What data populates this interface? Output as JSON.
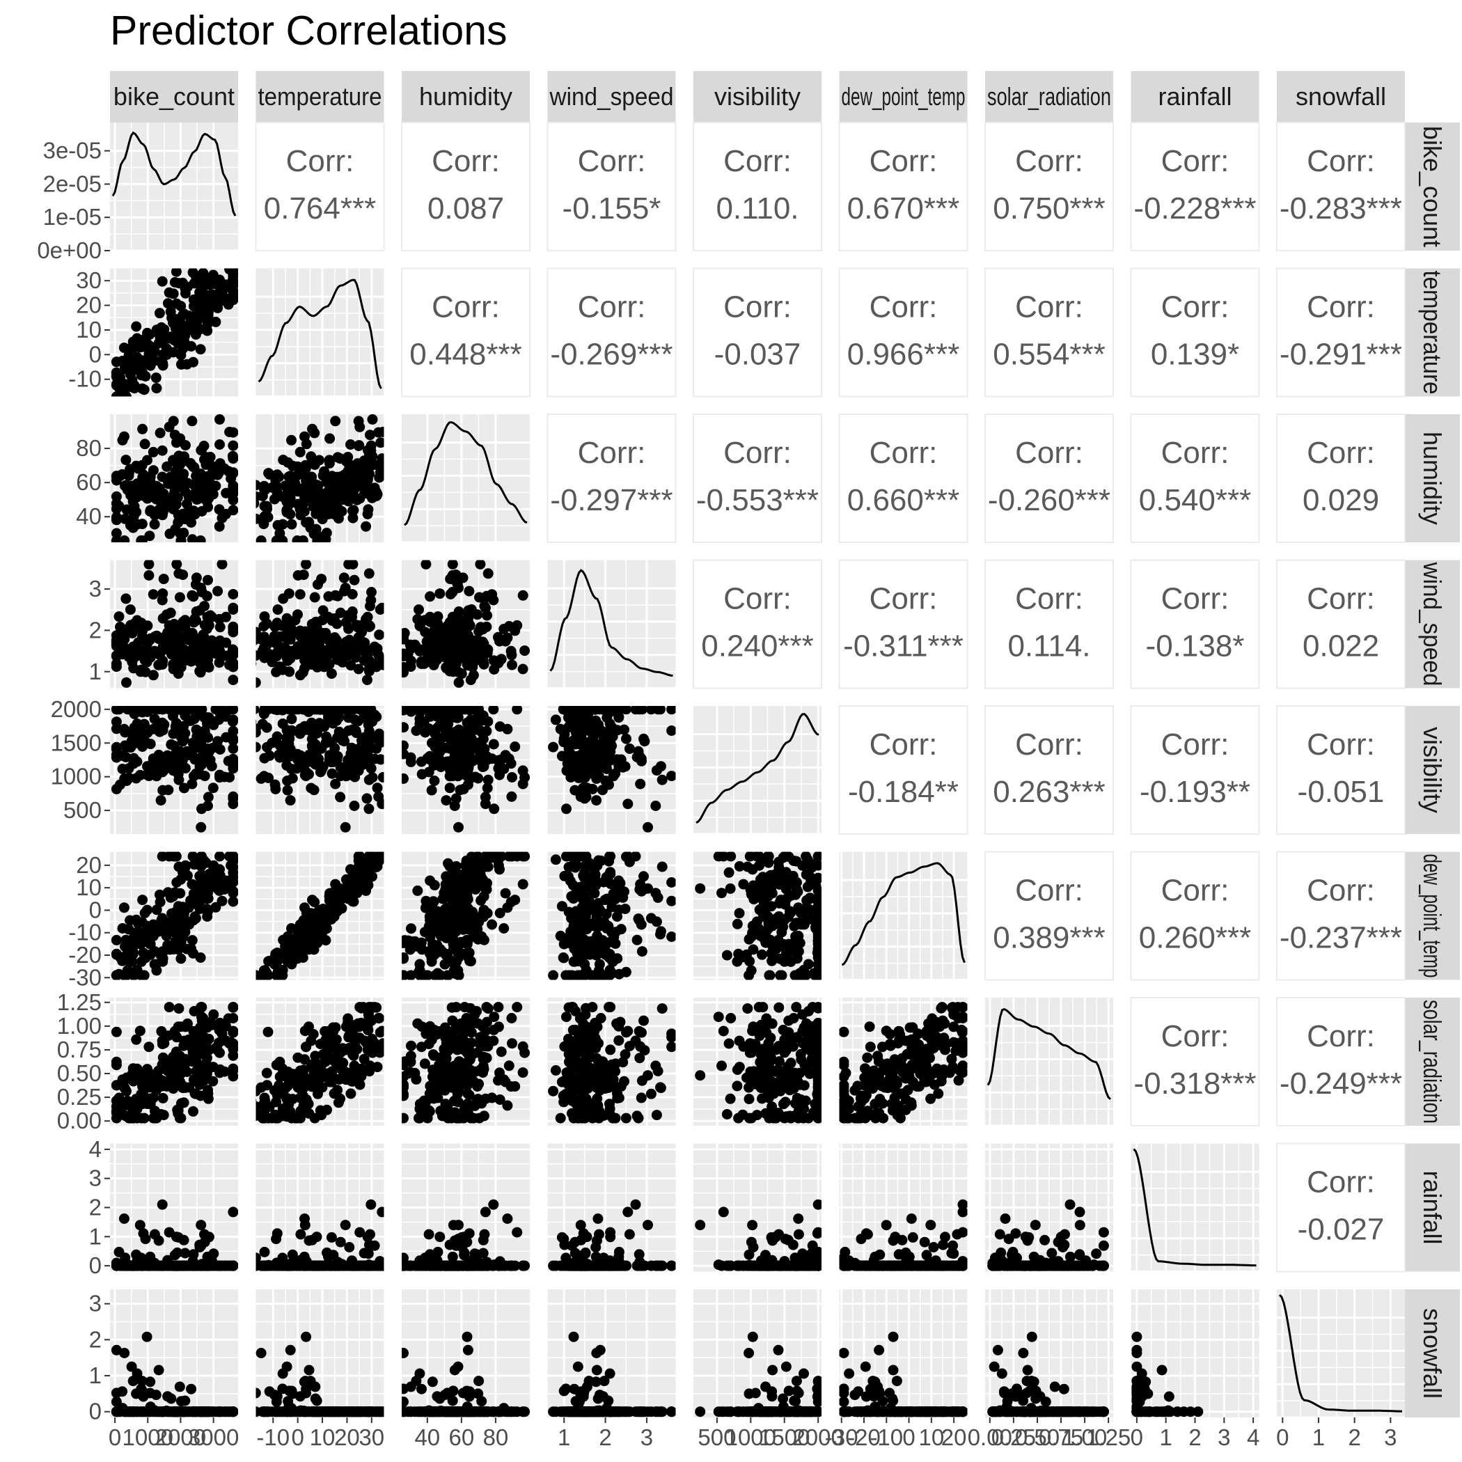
{
  "chart_data": {
    "type": "scatter",
    "title": "Predictor Correlations",
    "variables": [
      "bike_count",
      "temperature",
      "humidity",
      "wind_speed",
      "visibility",
      "dew_point_temp",
      "solar_radiation",
      "rainfall",
      "snowfall"
    ],
    "strip_labels": [
      "bike_count",
      "temperature",
      "humidity",
      "wind_speed",
      "visibility",
      "dew_point_temp",
      "solar_radiation",
      "rainfall",
      "snowfall"
    ],
    "corr_label": "Corr:",
    "correlations": [
      {
        "row": 0,
        "col": 1,
        "value": "0.764***"
      },
      {
        "row": 0,
        "col": 2,
        "value": "0.087"
      },
      {
        "row": 0,
        "col": 3,
        "value": "-0.155*"
      },
      {
        "row": 0,
        "col": 4,
        "value": "0.110."
      },
      {
        "row": 0,
        "col": 5,
        "value": "0.670***"
      },
      {
        "row": 0,
        "col": 6,
        "value": "0.750***"
      },
      {
        "row": 0,
        "col": 7,
        "value": "-0.228***"
      },
      {
        "row": 0,
        "col": 8,
        "value": "-0.283***"
      },
      {
        "row": 1,
        "col": 2,
        "value": "0.448***"
      },
      {
        "row": 1,
        "col": 3,
        "value": "-0.269***"
      },
      {
        "row": 1,
        "col": 4,
        "value": "-0.037"
      },
      {
        "row": 1,
        "col": 5,
        "value": "0.966***"
      },
      {
        "row": 1,
        "col": 6,
        "value": "0.554***"
      },
      {
        "row": 1,
        "col": 7,
        "value": "0.139*"
      },
      {
        "row": 1,
        "col": 8,
        "value": "-0.291***"
      },
      {
        "row": 2,
        "col": 3,
        "value": "-0.297***"
      },
      {
        "row": 2,
        "col": 4,
        "value": "-0.553***"
      },
      {
        "row": 2,
        "col": 5,
        "value": "0.660***"
      },
      {
        "row": 2,
        "col": 6,
        "value": "-0.260***"
      },
      {
        "row": 2,
        "col": 7,
        "value": "0.540***"
      },
      {
        "row": 2,
        "col": 8,
        "value": "0.029"
      },
      {
        "row": 3,
        "col": 4,
        "value": "0.240***"
      },
      {
        "row": 3,
        "col": 5,
        "value": "-0.311***"
      },
      {
        "row": 3,
        "col": 6,
        "value": "0.114."
      },
      {
        "row": 3,
        "col": 7,
        "value": "-0.138*"
      },
      {
        "row": 3,
        "col": 8,
        "value": "0.022"
      },
      {
        "row": 4,
        "col": 5,
        "value": "-0.184**"
      },
      {
        "row": 4,
        "col": 6,
        "value": "0.263***"
      },
      {
        "row": 4,
        "col": 7,
        "value": "-0.193**"
      },
      {
        "row": 4,
        "col": 8,
        "value": "-0.051"
      },
      {
        "row": 5,
        "col": 6,
        "value": "0.389***"
      },
      {
        "row": 5,
        "col": 7,
        "value": "0.260***"
      },
      {
        "row": 5,
        "col": 8,
        "value": "-0.237***"
      },
      {
        "row": 6,
        "col": 7,
        "value": "-0.318***"
      },
      {
        "row": 6,
        "col": 8,
        "value": "-0.249***"
      },
      {
        "row": 7,
        "col": 8,
        "value": "-0.027"
      }
    ],
    "density_y_axis": {
      "range": [
        0,
        3.85e-05
      ],
      "ticks": [
        0,
        1e-05,
        2e-05,
        3e-05
      ],
      "tick_labels": [
        "0e+00",
        "1e-05",
        "2e-05",
        "3e-05"
      ]
    },
    "axes": {
      "bike_count": {
        "range": [
          -150,
          3750
        ],
        "ticks": [
          0,
          1000,
          2000,
          3000
        ],
        "tick_labels": [
          "0",
          "1000",
          "2000",
          "3000"
        ]
      },
      "temperature": {
        "range": [
          -17,
          35
        ],
        "ticks": [
          -10,
          0,
          10,
          20,
          30
        ],
        "tick_labels": [
          "-10",
          "0",
          "10",
          "20",
          "30"
        ]
      },
      "humidity": {
        "range": [
          25,
          100
        ],
        "ticks": [
          40,
          60,
          80
        ],
        "tick_labels": [
          "40",
          "60",
          "80"
        ]
      },
      "wind_speed": {
        "range": [
          0.6,
          3.7
        ],
        "ticks": [
          1,
          2,
          3
        ],
        "tick_labels": [
          "1",
          "2",
          "3"
        ]
      },
      "visibility": {
        "range": [
          150,
          2050
        ],
        "ticks": [
          500,
          1000,
          1500,
          2000
        ],
        "tick_labels": [
          "500",
          "1000",
          "1500",
          "2000"
        ]
      },
      "dew_point_temp": {
        "range": [
          -31,
          26
        ],
        "ticks": [
          -30,
          -20,
          -10,
          0,
          10,
          20
        ],
        "tick_labels": [
          "-30",
          "-20",
          "-10",
          "0",
          "10",
          "20"
        ]
      },
      "solar_radiation": {
        "range": [
          -0.05,
          1.3
        ],
        "ticks": [
          0,
          0.25,
          0.5,
          0.75,
          1.0,
          1.25
        ],
        "tick_labels": [
          "0.00",
          "0.25",
          "0.50",
          "0.75",
          "1.00",
          "1.25"
        ]
      },
      "rainfall": {
        "range": [
          -0.2,
          4.2
        ],
        "ticks": [
          0,
          1,
          2,
          3,
          4
        ],
        "tick_labels": [
          "0",
          "1",
          "2",
          "3",
          "4"
        ]
      },
      "snowfall": {
        "range": [
          -0.16,
          3.4
        ],
        "ticks": [
          0,
          1,
          2,
          3
        ],
        "tick_labels": [
          "0",
          "1",
          "2",
          "3"
        ]
      }
    },
    "density_shapes": [
      {
        "variable": "bike_count",
        "y_rel": [
          0.42,
          0.72,
          0.96,
          0.86,
          0.65,
          0.52,
          0.56,
          0.66,
          0.8,
          0.95,
          0.9,
          0.58,
          0.25
        ]
      },
      {
        "variable": "temperature",
        "y_rel": [
          0.08,
          0.3,
          0.58,
          0.72,
          0.64,
          0.72,
          0.9,
          0.95,
          0.6,
          0.02
        ]
      },
      {
        "variable": "humidity",
        "y_rel": [
          0.1,
          0.4,
          0.75,
          0.98,
          0.9,
          0.78,
          0.45,
          0.28,
          0.12
        ]
      },
      {
        "variable": "wind_speed",
        "y_rel": [
          0.1,
          0.55,
          0.96,
          0.72,
          0.3,
          0.2,
          0.12,
          0.09,
          0.06
        ]
      },
      {
        "variable": "visibility",
        "y_rel": [
          0.05,
          0.22,
          0.33,
          0.4,
          0.48,
          0.58,
          0.74,
          0.98,
          0.8
        ]
      },
      {
        "variable": "dew_point_temp",
        "y_rel": [
          0.08,
          0.25,
          0.45,
          0.66,
          0.83,
          0.87,
          0.92,
          0.95,
          0.85,
          0.1
        ]
      },
      {
        "variable": "solar_radiation",
        "y_rel": [
          0.3,
          0.95,
          0.86,
          0.8,
          0.74,
          0.64,
          0.57,
          0.5,
          0.18
        ]
      },
      {
        "variable": "rainfall",
        "y_rel": [
          1.0,
          0.04,
          0.02,
          0.01,
          0.01,
          0.005
        ]
      },
      {
        "variable": "snowfall",
        "y_rel": [
          1.0,
          0.1,
          0.02,
          0.01,
          0.01,
          0.005
        ]
      }
    ],
    "n_points": 240,
    "grid": true,
    "panel_background": "#ebebeb",
    "strip_background": "#d9d9d9",
    "point_color": "#000000"
  }
}
